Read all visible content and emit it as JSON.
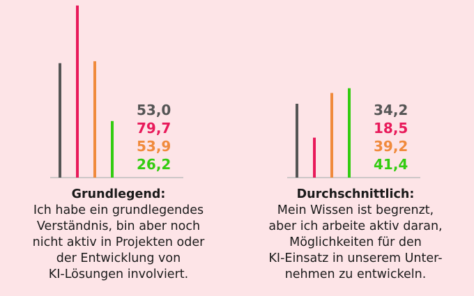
{
  "colors": [
    "#555555",
    "#e8195a",
    "#f08a3c",
    "#33cc11"
  ],
  "chart_data": [
    {
      "type": "bar",
      "title": "Grundlegend:",
      "description_lines": [
        "Ich habe ein grundlegendes",
        "Verständnis, bin aber noch",
        "nicht aktiv in Projekten oder",
        "der Entwicklung von",
        "KI-Lösungen involviert."
      ],
      "values": [
        53.0,
        79.7,
        53.9,
        26.2
      ],
      "value_labels": [
        "53,0",
        "79,7",
        "53,9",
        "26,2"
      ],
      "ylim": [
        0,
        80
      ]
    },
    {
      "type": "bar",
      "title": "Durchschnittlich:",
      "description_lines": [
        "Mein Wissen ist begrenzt,",
        "aber ich arbeite aktiv daran,",
        "Möglichkeiten für den",
        "KI-Einsatz in unserem Unter-",
        "nehmen zu entwickeln."
      ],
      "values": [
        34.2,
        18.5,
        39.2,
        41.4
      ],
      "value_labels": [
        "34,2",
        "18,5",
        "39,2",
        "41,4"
      ],
      "ylim": [
        0,
        80
      ]
    }
  ]
}
